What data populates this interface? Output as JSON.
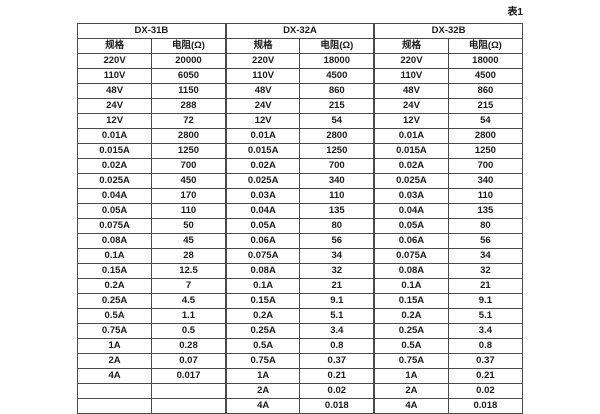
{
  "page": {
    "table_label": "表1"
  },
  "colors": {
    "background": "#ffffff",
    "border": "#4a4a4a",
    "text": "#1c1c1c"
  },
  "table": {
    "row_count": 24,
    "groups": [
      {
        "name": "DX-31B",
        "col_headers": [
          "规格",
          "电阻(Ω)"
        ],
        "rows": [
          [
            "220V",
            "20000"
          ],
          [
            "110V",
            "6050"
          ],
          [
            "48V",
            "1150"
          ],
          [
            "24V",
            "288"
          ],
          [
            "12V",
            "72"
          ],
          [
            "0.01A",
            "2800"
          ],
          [
            "0.015A",
            "1250"
          ],
          [
            "0.02A",
            "700"
          ],
          [
            "0.025A",
            "450"
          ],
          [
            "0.04A",
            "170"
          ],
          [
            "0.05A",
            "110"
          ],
          [
            "0.075A",
            "50"
          ],
          [
            "0.08A",
            "45"
          ],
          [
            "0.1A",
            "28"
          ],
          [
            "0.15A",
            "12.5"
          ],
          [
            "0.2A",
            "7"
          ],
          [
            "0.25A",
            "4.5"
          ],
          [
            "0.5A",
            "1.1"
          ],
          [
            "0.75A",
            "0.5"
          ],
          [
            "1A",
            "0.28"
          ],
          [
            "2A",
            "0.07"
          ],
          [
            "4A",
            "0.017"
          ],
          [
            "",
            ""
          ],
          [
            "",
            ""
          ]
        ]
      },
      {
        "name": "DX-32A",
        "col_headers": [
          "规格",
          "电阻(Ω)"
        ],
        "rows": [
          [
            "220V",
            "18000"
          ],
          [
            "110V",
            "4500"
          ],
          [
            "48V",
            "860"
          ],
          [
            "24V",
            "215"
          ],
          [
            "12V",
            "54"
          ],
          [
            "0.01A",
            "2800"
          ],
          [
            "0.015A",
            "1250"
          ],
          [
            "0.02A",
            "700"
          ],
          [
            "0.025A",
            "340"
          ],
          [
            "0.03A",
            "110"
          ],
          [
            "0.04A",
            "135"
          ],
          [
            "0.05A",
            "80"
          ],
          [
            "0.06A",
            "56"
          ],
          [
            "0.075A",
            "34"
          ],
          [
            "0.08A",
            "32"
          ],
          [
            "0.1A",
            "21"
          ],
          [
            "0.15A",
            "9.1"
          ],
          [
            "0.2A",
            "5.1"
          ],
          [
            "0.25A",
            "3.4"
          ],
          [
            "0.5A",
            "0.8"
          ],
          [
            "0.75A",
            "0.37"
          ],
          [
            "1A",
            "0.21"
          ],
          [
            "2A",
            "0.02"
          ],
          [
            "4A",
            "0.018"
          ]
        ]
      },
      {
        "name": "DX-32B",
        "col_headers": [
          "规格",
          "电阻(Ω)"
        ],
        "rows": [
          [
            "220V",
            "18000"
          ],
          [
            "110V",
            "4500"
          ],
          [
            "48V",
            "860"
          ],
          [
            "24V",
            "215"
          ],
          [
            "12V",
            "54"
          ],
          [
            "0.01A",
            "2800"
          ],
          [
            "0.015A",
            "1250"
          ],
          [
            "0.02A",
            "700"
          ],
          [
            "0.025A",
            "340"
          ],
          [
            "0.03A",
            "110"
          ],
          [
            "0.04A",
            "135"
          ],
          [
            "0.05A",
            "80"
          ],
          [
            "0.06A",
            "56"
          ],
          [
            "0.075A",
            "34"
          ],
          [
            "0.08A",
            "32"
          ],
          [
            "0.1A",
            "21"
          ],
          [
            "0.15A",
            "9.1"
          ],
          [
            "0.2A",
            "5.1"
          ],
          [
            "0.25A",
            "3.4"
          ],
          [
            "0.5A",
            "0.8"
          ],
          [
            "0.75A",
            "0.37"
          ],
          [
            "1A",
            "0.21"
          ],
          [
            "2A",
            "0.02"
          ],
          [
            "4A",
            "0.018"
          ]
        ]
      }
    ]
  }
}
